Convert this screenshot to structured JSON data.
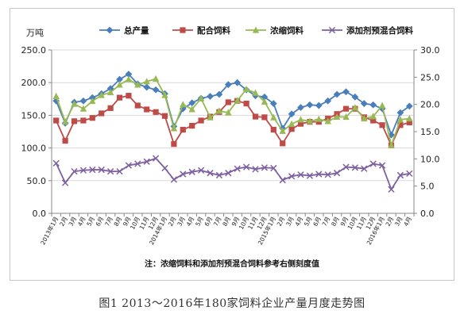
{
  "caption": "图1 2013～2016年180家饲料企业产量月度走势图",
  "chart_data": {
    "type": "line",
    "ylabel_left": "万吨",
    "ylim_left": [
      0,
      250
    ],
    "ylim_right": [
      0,
      30
    ],
    "left_ticks": [
      "0.0",
      "50.0",
      "100.0",
      "150.0",
      "200.0",
      "250.0"
    ],
    "right_ticks": [
      "0.0",
      "5.0",
      "10.0",
      "15.0",
      "20.0",
      "25.0",
      "30.0"
    ],
    "x_labels": [
      "2013年1月",
      "2月",
      "3月",
      "4月",
      "5月",
      "6月",
      "7月",
      "8月",
      "9月",
      "10月",
      "11月",
      "12月",
      "2014年1月",
      "2月",
      "3月",
      "4月",
      "5月",
      "6月",
      "7月",
      "8月",
      "9月",
      "10月",
      "11月",
      "12月",
      "2015年1月",
      "2月",
      "3月",
      "4月",
      "5月",
      "6月",
      "7月",
      "8月",
      "9月",
      "10月",
      "11月",
      "12月",
      "2016年1月",
      "2月",
      "3月",
      "4月"
    ],
    "legend_position": "top",
    "note": "注：浓缩饲料和添加剂预混合饲料参考右侧刻度值",
    "series": [
      {
        "name": "总产量",
        "axis": "left",
        "color": "#4a7ebb",
        "marker": "diamond",
        "values": [
          172,
          138,
          170,
          172,
          177,
          183,
          191,
          205,
          213,
          198,
          193,
          189,
          183,
          133,
          160,
          169,
          176,
          179,
          182,
          197,
          200,
          189,
          180,
          178,
          168,
          130,
          152,
          162,
          166,
          165,
          172,
          182,
          186,
          178,
          168,
          166,
          160,
          120,
          154,
          164
        ]
      },
      {
        "name": "配合饲料",
        "axis": "left",
        "color": "#be4b48",
        "marker": "square",
        "values": [
          142,
          111,
          141,
          142,
          146,
          153,
          161,
          177,
          180,
          165,
          159,
          155,
          149,
          106,
          128,
          134,
          142,
          148,
          155,
          170,
          172,
          168,
          148,
          147,
          128,
          107,
          129,
          137,
          140,
          140,
          145,
          152,
          160,
          160,
          147,
          142,
          135,
          104,
          135,
          139
        ]
      },
      {
        "name": "浓缩饲料",
        "axis": "right",
        "color": "#98b954",
        "marker": "triangle",
        "values": [
          21.5,
          16.8,
          20.1,
          19.2,
          20.6,
          21.7,
          22.2,
          23.6,
          24.6,
          23.6,
          24.2,
          24.7,
          21.7,
          15.6,
          20.0,
          19.1,
          21.1,
          17.6,
          18.8,
          18.5,
          20.7,
          22.8,
          22.1,
          20.5,
          17.6,
          15.1,
          16.4,
          17.2,
          16.9,
          17.3,
          16.9,
          17.7,
          17.7,
          19.4,
          17.4,
          17.8,
          19.8,
          12.5,
          17.2,
          17.4
        ]
      },
      {
        "name": "添加剂预混合饲料",
        "axis": "right",
        "color": "#7d60a0",
        "marker": "x",
        "values": [
          9.2,
          5.6,
          7.7,
          7.9,
          8.0,
          8.0,
          7.7,
          7.7,
          8.8,
          9.1,
          9.5,
          10.1,
          8.3,
          6.2,
          7.2,
          7.6,
          7.9,
          7.4,
          7.0,
          7.4,
          8.2,
          8.5,
          8.1,
          8.4,
          8.3,
          6.1,
          6.8,
          7.1,
          6.9,
          7.2,
          7.1,
          7.4,
          8.5,
          8.4,
          8.2,
          9.1,
          8.8,
          4.4,
          7.0,
          7.3
        ]
      }
    ]
  }
}
